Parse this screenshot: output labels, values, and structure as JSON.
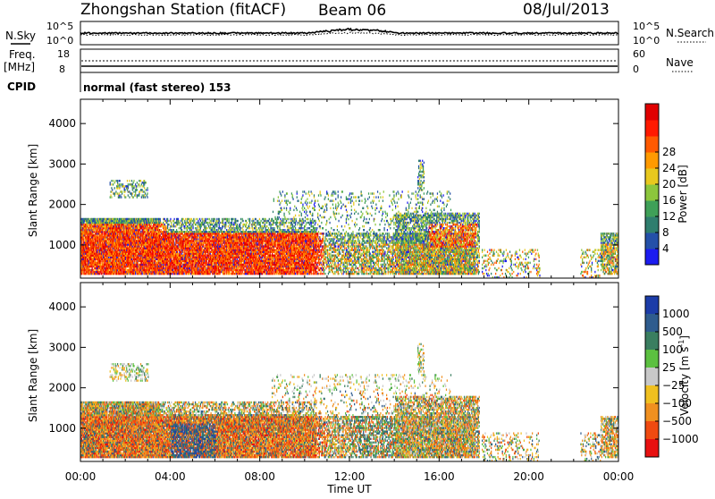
{
  "header": {
    "station": "Zhongshan Station (fitACF)",
    "beam": "Beam 06",
    "date": "08/Jul/2013"
  },
  "top_panels": {
    "nsky_label": "N.Sky",
    "nsky_scale_top": "10^5",
    "nsky_scale_bottom": "10^0",
    "nsearch_label": "N.Search",
    "nsearch_scale_top": "10^5",
    "nsearch_scale_bottom": "10^0",
    "freq_label": "Freq.",
    "freq_unit": "[MHz]",
    "freq_top": "18",
    "freq_bottom": "8",
    "nave_label": "Nave",
    "nave_top": "60",
    "nave_bottom": "0",
    "cpid_label": "CPID",
    "cpid_value": "normal (fast stereo) 153"
  },
  "chart_data": [
    {
      "type": "heatmap",
      "name": "power",
      "ylabel": "Slant Range [km]",
      "yticks": [
        "1000",
        "2000",
        "3000",
        "4000"
      ],
      "ylim": [
        180,
        4600
      ],
      "xlim": [
        0,
        24
      ],
      "colorbar_label": "Power [dB]",
      "colorbar_ticks": [
        "4",
        "8",
        "12",
        "16",
        "20",
        "24",
        "28"
      ],
      "colorbar_colors": [
        "#1c1cf0",
        "#2450a8",
        "#2f7e6e",
        "#3fa058",
        "#8cc63c",
        "#e8c81e",
        "#ff9a00",
        "#ff5a00",
        "#ff1a00",
        "#e00000"
      ]
    },
    {
      "type": "heatmap",
      "name": "velocity",
      "ylabel": "Slant Range [km]",
      "yticks": [
        "1000",
        "2000",
        "3000",
        "4000"
      ],
      "ylim": [
        180,
        4600
      ],
      "xlim": [
        0,
        24
      ],
      "xlabel": "Time UT",
      "xticks": [
        "00:00",
        "04:00",
        "08:00",
        "12:00",
        "16:00",
        "20:00",
        "00:00"
      ],
      "colorbar_label": "Velocity [m s",
      "colorbar_unit_sup": "-1",
      "colorbar_unit_end": "]",
      "colorbar_ticks": [
        "1000",
        "500",
        "100",
        "25",
        "−25",
        "−100",
        "−500",
        "−1000"
      ],
      "colorbar_colors": [
        "#1c3ca8",
        "#2f5c8e",
        "#3a7e60",
        "#5cc040",
        "#c8c8c8",
        "#f0c020",
        "#f09020",
        "#f04a10",
        "#e81010"
      ]
    }
  ]
}
